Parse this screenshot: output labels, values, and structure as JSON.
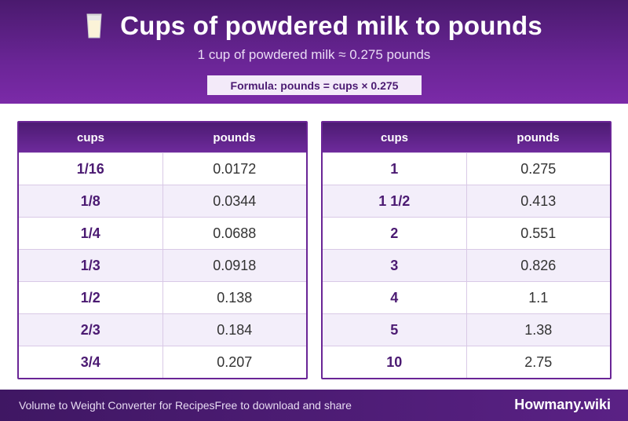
{
  "header": {
    "icon": "milk-glass-icon",
    "title": "Cups of powdered milk to pounds",
    "subtitle": "1 cup of powdered milk ≈ 0.275 pounds",
    "formula": "Formula: pounds = cups × 0.275"
  },
  "tables": [
    {
      "col_cups": "cups",
      "col_pounds": "pounds",
      "rows": [
        {
          "cups": "1/16",
          "pounds": "0.0172"
        },
        {
          "cups": "1/8",
          "pounds": "0.0344"
        },
        {
          "cups": "1/4",
          "pounds": "0.0688"
        },
        {
          "cups": "1/3",
          "pounds": "0.0918"
        },
        {
          "cups": "1/2",
          "pounds": "0.138"
        },
        {
          "cups": "2/3",
          "pounds": "0.184"
        },
        {
          "cups": "3/4",
          "pounds": "0.207"
        }
      ]
    },
    {
      "col_cups": "cups",
      "col_pounds": "pounds",
      "rows": [
        {
          "cups": "1",
          "pounds": "0.275"
        },
        {
          "cups": "1 1/2",
          "pounds": "0.413"
        },
        {
          "cups": "2",
          "pounds": "0.551"
        },
        {
          "cups": "3",
          "pounds": "0.826"
        },
        {
          "cups": "4",
          "pounds": "1.1"
        },
        {
          "cups": "5",
          "pounds": "1.38"
        },
        {
          "cups": "10",
          "pounds": "2.75"
        }
      ]
    }
  ],
  "footer": {
    "left_text_1": "Volume to Weight Converter for Recipes",
    "left_text_2": "Free to download and share",
    "brand": "Howmany.wiki"
  },
  "colors": {
    "accent": "#6a2596",
    "accent_dark": "#4b1a72",
    "row_alt": "#f3eefa"
  }
}
